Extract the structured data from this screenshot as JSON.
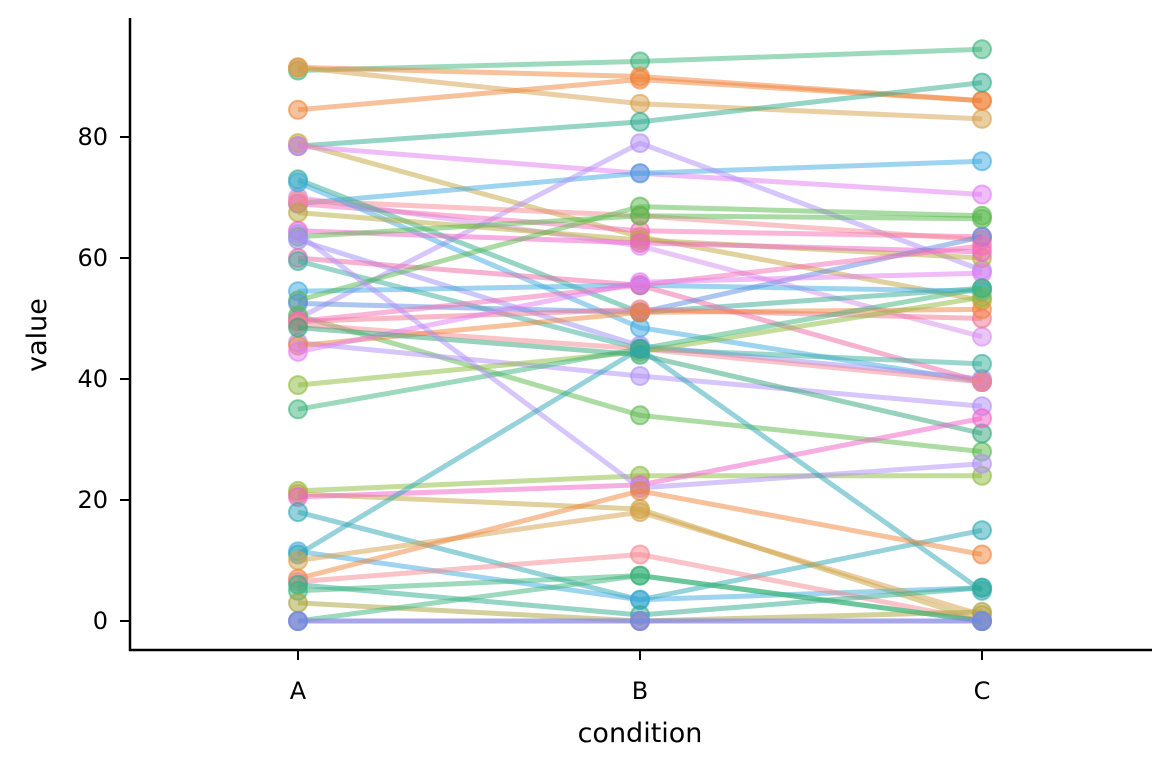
{
  "chart_data": {
    "type": "line",
    "xlabel": "condition",
    "ylabel": "value",
    "categories": [
      "A",
      "B",
      "C"
    ],
    "ylim": [
      -5,
      99
    ],
    "yticks": [
      0,
      20,
      40,
      60,
      80
    ],
    "grid": false,
    "legend": "none",
    "series": [
      {
        "color": "#3cb37a",
        "values": [
          91,
          92.5,
          94.5
        ]
      },
      {
        "color": "#f0833a",
        "values": [
          91.5,
          90,
          86
        ]
      },
      {
        "color": "#d7a04a",
        "values": [
          91.5,
          85.5,
          83
        ]
      },
      {
        "color": "#f0833a",
        "values": [
          84.5,
          89.5,
          86
        ]
      },
      {
        "color": "#2eab8e",
        "values": [
          78.5,
          82.5,
          89
        ]
      },
      {
        "color": "#c2a33c",
        "values": [
          79,
          63.5,
          53
        ]
      },
      {
        "color": "#e27cf4",
        "values": [
          78.5,
          74,
          70.5
        ]
      },
      {
        "color": "#3ea9df",
        "values": [
          69,
          74,
          76
        ]
      },
      {
        "color": "#b08df7",
        "values": [
          50,
          79,
          58
        ]
      },
      {
        "color": "#d58ef0",
        "values": [
          70,
          62,
          47
        ]
      },
      {
        "color": "#f66bb3",
        "values": [
          69,
          64.5,
          63.5
        ]
      },
      {
        "color": "#f5878f",
        "values": [
          69.5,
          67,
          63
        ]
      },
      {
        "color": "#2eab8e",
        "values": [
          73,
          51,
          55
        ]
      },
      {
        "color": "#3ea9df",
        "values": [
          72.5,
          48.5,
          39.5
        ]
      },
      {
        "color": "#b7a93a",
        "values": [
          67.5,
          63,
          60
        ]
      },
      {
        "color": "#f060c8",
        "values": [
          64.5,
          62.5,
          61
        ]
      },
      {
        "color": "#55b84a",
        "values": [
          63.5,
          67,
          66.5
        ]
      },
      {
        "color": "#9b8df5",
        "values": [
          63,
          45.5,
          40
        ]
      },
      {
        "color": "#f066a5",
        "values": [
          60,
          55.5,
          39.5
        ]
      },
      {
        "color": "#37ad9b",
        "values": [
          59.5,
          45,
          42.5
        ]
      },
      {
        "color": "#3ea9df",
        "values": [
          54.5,
          55.5,
          54.5
        ]
      },
      {
        "color": "#55b84a",
        "values": [
          53,
          68.5,
          67
        ]
      },
      {
        "color": "#5e8ee0",
        "values": [
          52.5,
          51,
          63.5
        ]
      },
      {
        "color": "#5ab84a",
        "values": [
          50.5,
          34,
          28
        ]
      },
      {
        "color": "#f2738f",
        "values": [
          49.5,
          51.5,
          50
        ]
      },
      {
        "color": "#f66bb3",
        "values": [
          49.5,
          55.5,
          62
        ]
      },
      {
        "color": "#f5878f",
        "values": [
          49,
          45,
          39.5
        ]
      },
      {
        "color": "#b08df7",
        "values": [
          46,
          40.5,
          35.5
        ]
      },
      {
        "color": "#f0833a",
        "values": [
          45.5,
          51,
          51.5
        ]
      },
      {
        "color": "#e27cf4",
        "values": [
          44.5,
          56,
          57.5
        ]
      },
      {
        "color": "#8cbb3a",
        "values": [
          39,
          44.5,
          53.5
        ]
      },
      {
        "color": "#3cb37a",
        "values": [
          35,
          45,
          55
        ]
      },
      {
        "color": "#33a67a",
        "values": [
          48.5,
          44,
          31
        ]
      },
      {
        "color": "#8cbb3a",
        "values": [
          21.5,
          24,
          24
        ]
      },
      {
        "color": "#c2a33c",
        "values": [
          21,
          18.5,
          0
        ]
      },
      {
        "color": "#f060c8",
        "values": [
          20.5,
          22.5,
          33.5
        ]
      },
      {
        "color": "#b08df7",
        "values": [
          64,
          22,
          26
        ]
      },
      {
        "color": "#2ea6b4",
        "values": [
          18,
          3.5,
          15
        ]
      },
      {
        "color": "#3ea9df",
        "values": [
          11.5,
          3.5,
          5.5
        ]
      },
      {
        "color": "#2ea6b4",
        "values": [
          11,
          45,
          5
        ]
      },
      {
        "color": "#d7a04a",
        "values": [
          10,
          18,
          1
        ]
      },
      {
        "color": "#f0833a",
        "values": [
          7,
          21.5,
          11
        ]
      },
      {
        "color": "#f5878f",
        "values": [
          6.5,
          11,
          0
        ]
      },
      {
        "color": "#2eab8e",
        "values": [
          6,
          1,
          5.5
        ]
      },
      {
        "color": "#3cb37a",
        "values": [
          5,
          7.5,
          0
        ]
      },
      {
        "color": "#a8a23a",
        "values": [
          3,
          0,
          1.5
        ]
      },
      {
        "color": "#3cb37a",
        "values": [
          0,
          7.5,
          0
        ]
      },
      {
        "color": "#e27cf4",
        "values": [
          0,
          0,
          0
        ]
      },
      {
        "color": "#5e8ee0",
        "values": [
          0,
          0,
          0
        ]
      }
    ]
  }
}
